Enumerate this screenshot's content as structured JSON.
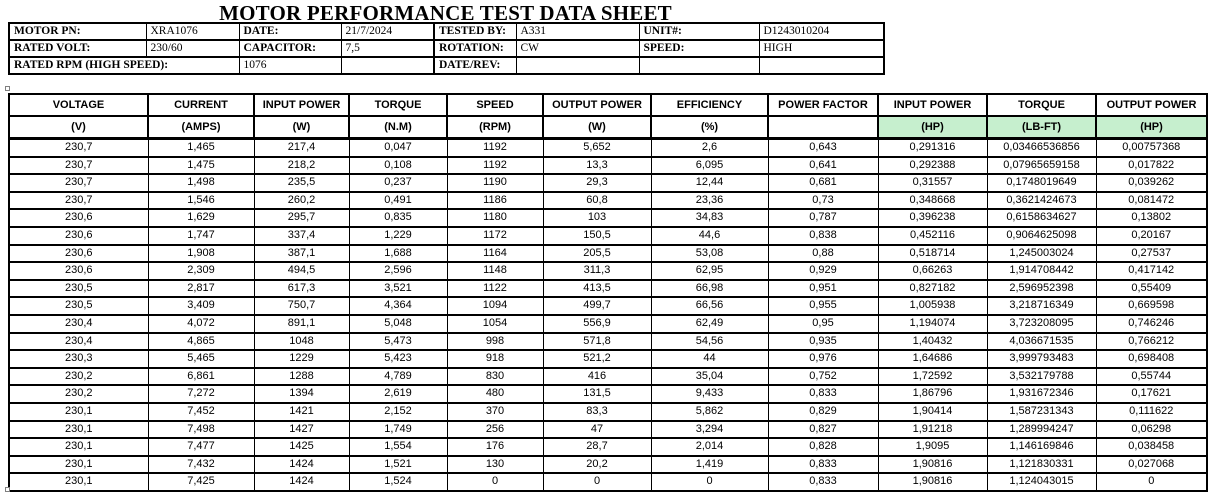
{
  "title": "MOTOR PERFORMANCE TEST DATA SHEET",
  "colors": {
    "highlight_green": "#C6EFCE",
    "border": "#000000"
  },
  "info": {
    "motor_pn": {
      "label": "MOTOR PN:",
      "value": "XRA1076"
    },
    "date": {
      "label": "DATE:",
      "value": "21/7/2024"
    },
    "tested_by": {
      "label": "TESTED BY:",
      "value": "A331"
    },
    "unit_no": {
      "label": "UNIT#:",
      "value": "D1243010204"
    },
    "rated_volt": {
      "label": "RATED VOLT:",
      "value": "230/60"
    },
    "capacitor": {
      "label": "CAPACITOR:",
      "value": "7,5"
    },
    "rotation": {
      "label": "ROTATION:",
      "value": "CW"
    },
    "speed": {
      "label": "SPEED:",
      "value": "HIGH"
    },
    "rated_rpm": {
      "label": "RATED RPM (HIGH SPEED):",
      "value": "1076"
    },
    "date_rev": {
      "label": "DATE/REV:",
      "value": ""
    }
  },
  "main_table": {
    "columns": [
      {
        "key": "voltage",
        "header": "VOLTAGE",
        "unit": "(V)",
        "highlight": false
      },
      {
        "key": "current",
        "header": "CURRENT",
        "unit": "(AMPS)",
        "highlight": false
      },
      {
        "key": "input_power_w",
        "header": "INPUT POWER",
        "unit": "(W)",
        "highlight": false
      },
      {
        "key": "torque_nm",
        "header": "TORQUE",
        "unit": "(N.M)",
        "highlight": false
      },
      {
        "key": "speed_rpm",
        "header": "SPEED",
        "unit": "(RPM)",
        "highlight": false
      },
      {
        "key": "output_power_w",
        "header": "OUTPUT POWER",
        "unit": "(W)",
        "highlight": false
      },
      {
        "key": "efficiency",
        "header": "EFFICIENCY",
        "unit": "(%)",
        "highlight": false
      },
      {
        "key": "power_factor",
        "header": "POWER FACTOR",
        "unit": "",
        "highlight": false
      },
      {
        "key": "input_power_hp",
        "header": "INPUT POWER",
        "unit": "(HP)",
        "highlight": true
      },
      {
        "key": "torque_lbft",
        "header": "TORQUE",
        "unit": "(LB-FT)",
        "highlight": true
      },
      {
        "key": "output_power_hp",
        "header": "OUTPUT POWER",
        "unit": "(HP)",
        "highlight": true
      }
    ],
    "rows": [
      [
        "230,7",
        "1,465",
        "217,4",
        "0,047",
        "1192",
        "5,652",
        "2,6",
        "0,643",
        "0,291316",
        "0,03466536856",
        "0,00757368"
      ],
      [
        "230,7",
        "1,475",
        "218,2",
        "0,108",
        "1192",
        "13,3",
        "6,095",
        "0,641",
        "0,292388",
        "0,07965659158",
        "0,017822"
      ],
      [
        "230,7",
        "1,498",
        "235,5",
        "0,237",
        "1190",
        "29,3",
        "12,44",
        "0,681",
        "0,31557",
        "0,1748019649",
        "0,039262"
      ],
      [
        "230,7",
        "1,546",
        "260,2",
        "0,491",
        "1186",
        "60,8",
        "23,36",
        "0,73",
        "0,348668",
        "0,3621424673",
        "0,081472"
      ],
      [
        "230,6",
        "1,629",
        "295,7",
        "0,835",
        "1180",
        "103",
        "34,83",
        "0,787",
        "0,396238",
        "0,6158634627",
        "0,13802"
      ],
      [
        "230,6",
        "1,747",
        "337,4",
        "1,229",
        "1172",
        "150,5",
        "44,6",
        "0,838",
        "0,452116",
        "0,9064625098",
        "0,20167"
      ],
      [
        "230,6",
        "1,908",
        "387,1",
        "1,688",
        "1164",
        "205,5",
        "53,08",
        "0,88",
        "0,518714",
        "1,245003024",
        "0,27537"
      ],
      [
        "230,6",
        "2,309",
        "494,5",
        "2,596",
        "1148",
        "311,3",
        "62,95",
        "0,929",
        "0,66263",
        "1,914708442",
        "0,417142"
      ],
      [
        "230,5",
        "2,817",
        "617,3",
        "3,521",
        "1122",
        "413,5",
        "66,98",
        "0,951",
        "0,827182",
        "2,596952398",
        "0,55409"
      ],
      [
        "230,5",
        "3,409",
        "750,7",
        "4,364",
        "1094",
        "499,7",
        "66,56",
        "0,955",
        "1,005938",
        "3,218716349",
        "0,669598"
      ],
      [
        "230,4",
        "4,072",
        "891,1",
        "5,048",
        "1054",
        "556,9",
        "62,49",
        "0,95",
        "1,194074",
        "3,723208095",
        "0,746246"
      ],
      [
        "230,4",
        "4,865",
        "1048",
        "5,473",
        "998",
        "571,8",
        "54,56",
        "0,935",
        "1,40432",
        "4,036671535",
        "0,766212"
      ],
      [
        "230,3",
        "5,465",
        "1229",
        "5,423",
        "918",
        "521,2",
        "44",
        "0,976",
        "1,64686",
        "3,999793483",
        "0,698408"
      ],
      [
        "230,2",
        "6,861",
        "1288",
        "4,789",
        "830",
        "416",
        "35,04",
        "0,752",
        "1,72592",
        "3,532179788",
        "0,55744"
      ],
      [
        "230,2",
        "7,272",
        "1394",
        "2,619",
        "480",
        "131,5",
        "9,433",
        "0,833",
        "1,86796",
        "1,931672346",
        "0,17621"
      ],
      [
        "230,1",
        "7,452",
        "1421",
        "2,152",
        "370",
        "83,3",
        "5,862",
        "0,829",
        "1,90414",
        "1,587231343",
        "0,111622"
      ],
      [
        "230,1",
        "7,498",
        "1427",
        "1,749",
        "256",
        "47",
        "3,294",
        "0,827",
        "1,91218",
        "1,289994247",
        "0,06298"
      ],
      [
        "230,1",
        "7,477",
        "1425",
        "1,554",
        "176",
        "28,7",
        "2,014",
        "0,828",
        "1,9095",
        "1,146169846",
        "0,038458"
      ],
      [
        "230,1",
        "7,432",
        "1424",
        "1,521",
        "130",
        "20,2",
        "1,419",
        "0,833",
        "1,90816",
        "1,121830331",
        "0,027068"
      ],
      [
        "230,1",
        "7,425",
        "1424",
        "1,524",
        "0",
        "0",
        "0",
        "0,833",
        "1,90816",
        "1,124043015",
        "0"
      ]
    ]
  }
}
